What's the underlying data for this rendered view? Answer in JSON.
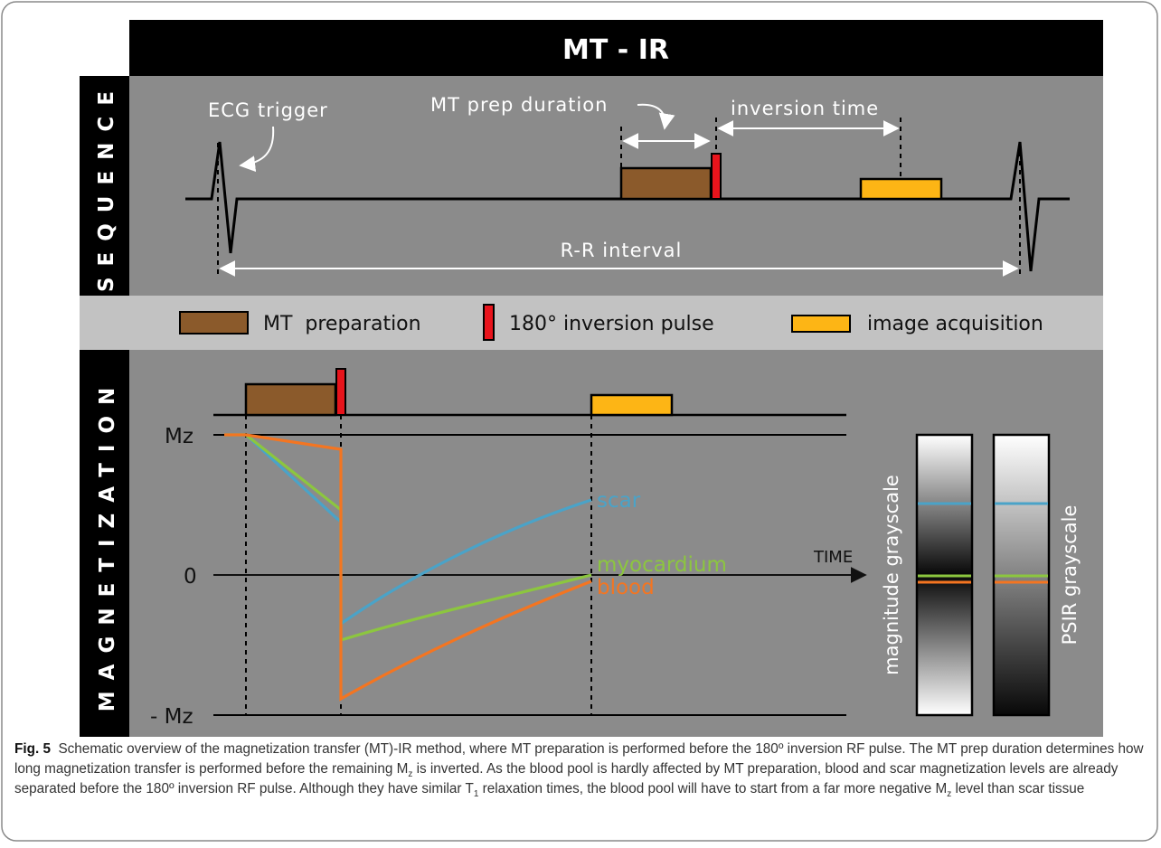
{
  "figure": {
    "title": "MT - IR",
    "sequence_label": "SEQUENCE",
    "magnetization_label": "MAGNETIZATION",
    "ecg_trigger": "ECG trigger",
    "mt_prep_duration": "MT prep duration",
    "inversion_time": "inversion time",
    "rr_interval": "R-R interval",
    "legend": {
      "mt_preparation": "MT  preparation",
      "inversion_pulse": "180° inversion pulse",
      "image_acquisition": "image acquisition"
    },
    "y_labels": {
      "top": "Mz",
      "zero": "0",
      "bottom": "- Mz"
    },
    "time_label": "TIME",
    "curves": {
      "scar": "scar",
      "myocardium": "myocardium",
      "blood": "blood"
    },
    "grayscale": {
      "magnitude": "magnitude grayscale",
      "psir": "PSIR grayscale"
    },
    "colors": {
      "panel_gray": "#8b8b8b",
      "legend_gray": "#c2c2c2",
      "mt_brown": "#8b5a2b",
      "inversion_red": "#e8141c",
      "acquisition_orange": "#fdb515",
      "scar_blue": "#4aa3c8",
      "myocardium_green": "#8cc63f",
      "blood_orange": "#f47521"
    }
  },
  "caption": {
    "label": "Fig. 5",
    "part1": "Schematic overview of the magnetization transfer (MT)-IR method, where MT preparation is performed before the 180º inversion RF pulse. The MT prep duration determines how long magnetization transfer is performed before the remaining M",
    "sub1": "z",
    "part2": " is inverted. As the blood pool is hardly affected by MT preparation, blood and scar magnetization levels are already separated before the 180º inversion RF pulse. Although they have similar T",
    "sub2": "1",
    "part3": " relaxation times, the blood pool will have to start from a far more negative M",
    "sub3": "z",
    "part4": " level than scar tissue"
  }
}
